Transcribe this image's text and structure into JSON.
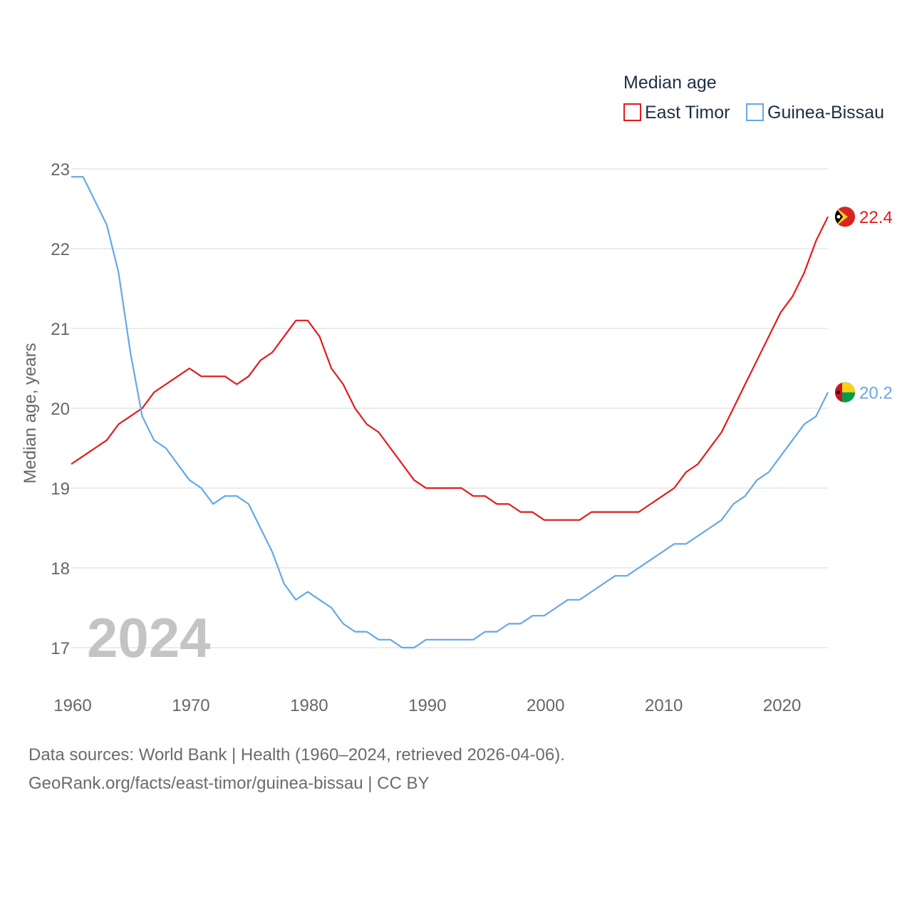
{
  "chart_data": {
    "type": "line",
    "legend_title": "Median age",
    "ylabel": "Median age, years",
    "year_label": "2024",
    "ylim": [
      17,
      23
    ],
    "xlim": [
      1960,
      2024
    ],
    "yticks": [
      17,
      18,
      19,
      20,
      21,
      22,
      23
    ],
    "xticks": [
      1960,
      1970,
      1980,
      1990,
      2000,
      2010,
      2020
    ],
    "x": [
      1960,
      1961,
      1962,
      1963,
      1964,
      1965,
      1966,
      1967,
      1968,
      1969,
      1970,
      1971,
      1972,
      1973,
      1974,
      1975,
      1976,
      1977,
      1978,
      1979,
      1980,
      1981,
      1982,
      1983,
      1984,
      1985,
      1986,
      1987,
      1988,
      1989,
      1990,
      1991,
      1992,
      1993,
      1994,
      1995,
      1996,
      1997,
      1998,
      1999,
      2000,
      2001,
      2002,
      2003,
      2004,
      2005,
      2006,
      2007,
      2008,
      2009,
      2010,
      2011,
      2012,
      2013,
      2014,
      2015,
      2016,
      2017,
      2018,
      2019,
      2020,
      2021,
      2022,
      2023,
      2024
    ],
    "series": [
      {
        "name": "East Timor",
        "color": "#e31a1c",
        "end_label": "22.4",
        "flag": "east-timor-flag-icon",
        "values": [
          19.3,
          19.4,
          19.5,
          19.6,
          19.8,
          19.9,
          20.0,
          20.2,
          20.3,
          20.4,
          20.5,
          20.4,
          20.4,
          20.4,
          20.3,
          20.4,
          20.6,
          20.7,
          20.9,
          21.1,
          21.1,
          20.9,
          20.5,
          20.3,
          20.0,
          19.8,
          19.7,
          19.5,
          19.3,
          19.1,
          19.0,
          19.0,
          19.0,
          19.0,
          18.9,
          18.9,
          18.8,
          18.8,
          18.7,
          18.7,
          18.6,
          18.6,
          18.6,
          18.6,
          18.7,
          18.7,
          18.7,
          18.7,
          18.7,
          18.8,
          18.9,
          19.0,
          19.2,
          19.3,
          19.5,
          19.7,
          20.0,
          20.3,
          20.6,
          20.9,
          21.2,
          21.4,
          21.7,
          22.1,
          22.4
        ]
      },
      {
        "name": "Guinea-Bissau",
        "color": "#64a8e8",
        "end_label": "20.2",
        "flag": "guinea-bissau-flag-icon",
        "values": [
          22.9,
          22.9,
          22.6,
          22.3,
          21.7,
          20.7,
          19.9,
          19.6,
          19.5,
          19.3,
          19.1,
          19.0,
          18.8,
          18.9,
          18.9,
          18.8,
          18.5,
          18.2,
          17.8,
          17.6,
          17.7,
          17.6,
          17.5,
          17.3,
          17.2,
          17.2,
          17.1,
          17.1,
          17.0,
          17.0,
          17.1,
          17.1,
          17.1,
          17.1,
          17.1,
          17.2,
          17.2,
          17.3,
          17.3,
          17.4,
          17.4,
          17.5,
          17.6,
          17.6,
          17.7,
          17.8,
          17.9,
          17.9,
          18.0,
          18.1,
          18.2,
          18.3,
          18.3,
          18.4,
          18.5,
          18.6,
          18.8,
          18.9,
          19.1,
          19.2,
          19.4,
          19.6,
          19.8,
          19.9,
          20.2
        ]
      }
    ]
  },
  "footer": {
    "line1": "Data sources: World Bank | Health (1960–2024, retrieved 2026-04-06).",
    "line2": "GeoRank.org/facts/east-timor/guinea-bissau | CC BY"
  }
}
